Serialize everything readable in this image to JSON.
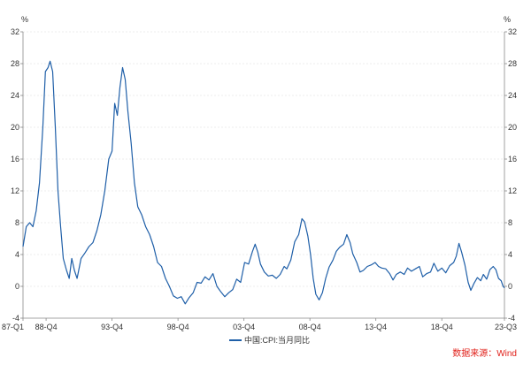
{
  "chart_data": {
    "type": "line",
    "unit_left": "%",
    "unit_right": "%",
    "ylim": [
      -4,
      32
    ],
    "yticks": [
      -4,
      0,
      4,
      8,
      12,
      16,
      20,
      24,
      28,
      32
    ],
    "grid": "horizontal dashed",
    "xlim": [
      1987.0,
      2023.5
    ],
    "xticks": [
      {
        "label": "87-Q1",
        "x": 1987.0
      },
      {
        "label": "88-Q4",
        "x": 1988.75
      },
      {
        "label": "93-Q4",
        "x": 1993.75
      },
      {
        "label": "98-Q4",
        "x": 1998.75
      },
      {
        "label": "03-Q4",
        "x": 2003.75
      },
      {
        "label": "08-Q4",
        "x": 2008.75
      },
      {
        "label": "13-Q4",
        "x": 2013.75
      },
      {
        "label": "18-Q4",
        "x": 2018.75
      },
      {
        "label": "23-Q3",
        "x": 2023.5
      }
    ],
    "series": [
      {
        "name": "中国:CPI:当月同比",
        "color": "#1f5fa8",
        "points": [
          [
            1987.0,
            5.0
          ],
          [
            1987.25,
            7.5
          ],
          [
            1987.5,
            8.0
          ],
          [
            1987.75,
            7.5
          ],
          [
            1988.0,
            9.5
          ],
          [
            1988.25,
            13.0
          ],
          [
            1988.5,
            20.0
          ],
          [
            1988.7,
            27.0
          ],
          [
            1988.9,
            27.5
          ],
          [
            1989.05,
            28.3
          ],
          [
            1989.25,
            27.0
          ],
          [
            1989.45,
            20.0
          ],
          [
            1989.65,
            12.0
          ],
          [
            1989.85,
            7.5
          ],
          [
            1990.05,
            3.5
          ],
          [
            1990.3,
            2.0
          ],
          [
            1990.5,
            1.0
          ],
          [
            1990.7,
            3.5
          ],
          [
            1990.9,
            2.0
          ],
          [
            1991.1,
            1.0
          ],
          [
            1991.4,
            3.5
          ],
          [
            1991.7,
            4.2
          ],
          [
            1992.0,
            5.0
          ],
          [
            1992.3,
            5.5
          ],
          [
            1992.6,
            7.0
          ],
          [
            1992.9,
            9.0
          ],
          [
            1993.2,
            12.0
          ],
          [
            1993.5,
            16.0
          ],
          [
            1993.75,
            17.0
          ],
          [
            1993.95,
            23.0
          ],
          [
            1994.15,
            21.5
          ],
          [
            1994.35,
            25.0
          ],
          [
            1994.55,
            27.5
          ],
          [
            1994.75,
            26.0
          ],
          [
            1994.95,
            22.0
          ],
          [
            1995.2,
            18.0
          ],
          [
            1995.45,
            13.0
          ],
          [
            1995.7,
            10.0
          ],
          [
            1996.0,
            9.0
          ],
          [
            1996.3,
            7.5
          ],
          [
            1996.6,
            6.5
          ],
          [
            1996.9,
            5.0
          ],
          [
            1997.2,
            3.0
          ],
          [
            1997.5,
            2.5
          ],
          [
            1997.8,
            1.0
          ],
          [
            1998.1,
            0.0
          ],
          [
            1998.4,
            -1.2
          ],
          [
            1998.7,
            -1.5
          ],
          [
            1999.0,
            -1.3
          ],
          [
            1999.3,
            -2.2
          ],
          [
            1999.6,
            -1.4
          ],
          [
            1999.9,
            -0.8
          ],
          [
            2000.2,
            0.5
          ],
          [
            2000.5,
            0.4
          ],
          [
            2000.8,
            1.2
          ],
          [
            2001.1,
            0.8
          ],
          [
            2001.4,
            1.6
          ],
          [
            2001.7,
            0.0
          ],
          [
            2002.0,
            -0.7
          ],
          [
            2002.3,
            -1.3
          ],
          [
            2002.6,
            -0.8
          ],
          [
            2002.9,
            -0.4
          ],
          [
            2003.2,
            0.9
          ],
          [
            2003.5,
            0.5
          ],
          [
            2003.8,
            3.0
          ],
          [
            2004.1,
            2.8
          ],
          [
            2004.4,
            4.4
          ],
          [
            2004.6,
            5.3
          ],
          [
            2004.8,
            4.3
          ],
          [
            2005.0,
            2.8
          ],
          [
            2005.3,
            1.8
          ],
          [
            2005.6,
            1.3
          ],
          [
            2005.9,
            1.4
          ],
          [
            2006.2,
            1.0
          ],
          [
            2006.5,
            1.5
          ],
          [
            2006.8,
            2.5
          ],
          [
            2007.0,
            2.2
          ],
          [
            2007.3,
            3.3
          ],
          [
            2007.6,
            5.6
          ],
          [
            2007.9,
            6.5
          ],
          [
            2008.15,
            8.5
          ],
          [
            2008.35,
            8.1
          ],
          [
            2008.6,
            6.3
          ],
          [
            2008.8,
            4.0
          ],
          [
            2009.0,
            1.0
          ],
          [
            2009.2,
            -1.0
          ],
          [
            2009.45,
            -1.7
          ],
          [
            2009.7,
            -0.8
          ],
          [
            2009.95,
            1.0
          ],
          [
            2010.2,
            2.4
          ],
          [
            2010.5,
            3.3
          ],
          [
            2010.75,
            4.4
          ],
          [
            2011.0,
            4.9
          ],
          [
            2011.3,
            5.3
          ],
          [
            2011.55,
            6.5
          ],
          [
            2011.8,
            5.5
          ],
          [
            2012.0,
            4.1
          ],
          [
            2012.3,
            3.0
          ],
          [
            2012.55,
            1.8
          ],
          [
            2012.8,
            2.0
          ],
          [
            2013.1,
            2.5
          ],
          [
            2013.4,
            2.7
          ],
          [
            2013.7,
            3.0
          ],
          [
            2013.95,
            2.5
          ],
          [
            2014.2,
            2.3
          ],
          [
            2014.5,
            2.2
          ],
          [
            2014.8,
            1.6
          ],
          [
            2015.05,
            0.8
          ],
          [
            2015.3,
            1.5
          ],
          [
            2015.6,
            1.8
          ],
          [
            2015.9,
            1.5
          ],
          [
            2016.15,
            2.3
          ],
          [
            2016.45,
            1.9
          ],
          [
            2016.75,
            2.2
          ],
          [
            2017.05,
            2.5
          ],
          [
            2017.3,
            1.2
          ],
          [
            2017.6,
            1.6
          ],
          [
            2017.9,
            1.8
          ],
          [
            2018.15,
            2.9
          ],
          [
            2018.45,
            1.9
          ],
          [
            2018.75,
            2.3
          ],
          [
            2019.05,
            1.7
          ],
          [
            2019.35,
            2.6
          ],
          [
            2019.65,
            3.0
          ],
          [
            2019.85,
            3.8
          ],
          [
            2020.05,
            5.4
          ],
          [
            2020.25,
            4.3
          ],
          [
            2020.5,
            2.7
          ],
          [
            2020.75,
            0.5
          ],
          [
            2020.95,
            -0.5
          ],
          [
            2021.2,
            0.4
          ],
          [
            2021.45,
            1.1
          ],
          [
            2021.7,
            0.7
          ],
          [
            2021.9,
            1.5
          ],
          [
            2022.15,
            0.9
          ],
          [
            2022.4,
            2.1
          ],
          [
            2022.65,
            2.5
          ],
          [
            2022.85,
            2.1
          ],
          [
            2023.05,
            1.0
          ],
          [
            2023.25,
            0.7
          ],
          [
            2023.4,
            0.0
          ],
          [
            2023.5,
            -0.2
          ]
        ]
      }
    ],
    "legend": {
      "label": "中国:CPI:当月同比",
      "placement": "bottom-center"
    },
    "source": "数据来源：Wind"
  }
}
